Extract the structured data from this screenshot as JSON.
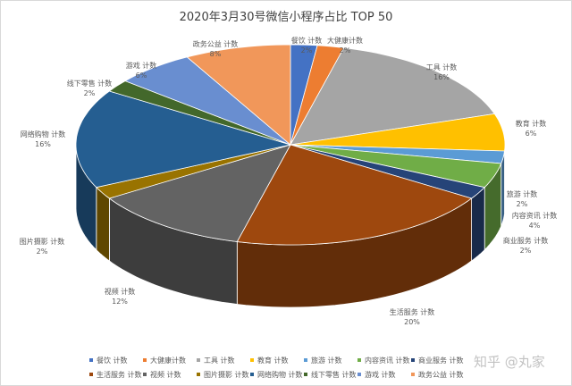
{
  "chart_data": {
    "type": "pie",
    "style": "3d-pie",
    "title": "2020年3月30号微信小程序占比 TOP 50",
    "categories": [
      "餐饮 计数",
      "大健康计数",
      "工具 计数",
      "教育 计数",
      "旅游 计数",
      "内容资讯 计数",
      "商业服务 计数",
      "生活服务 计数",
      "视频 计数",
      "图片摄影 计数",
      "网络购物 计数",
      "线下零售 计数",
      "游戏 计数",
      "政务公益 计数"
    ],
    "values": [
      2,
      2,
      16,
      6,
      2,
      4,
      2,
      20,
      12,
      2,
      16,
      2,
      6,
      8
    ],
    "value_labels": [
      "2%",
      "2%",
      "16%",
      "6%",
      "2%",
      "4%",
      "2%",
      "20%",
      "12%",
      "2%",
      "16%",
      "2%",
      "6%",
      "8%"
    ],
    "colors": [
      "#4472c4",
      "#ed7d31",
      "#a5a5a5",
      "#ffc000",
      "#5b9bd5",
      "#70ad47",
      "#264478",
      "#9e480e",
      "#636363",
      "#997300",
      "#255e91",
      "#43682b",
      "#698ed0",
      "#f1975a"
    ],
    "legend_position": "bottom",
    "start_angle_deg": 0,
    "direction": "clockwise"
  },
  "labels": [
    {
      "name": "餐饮 计数",
      "pct": "2%"
    },
    {
      "name": "大健康计数",
      "pct": "2%"
    },
    {
      "name": "工具 计数",
      "pct": "16%"
    },
    {
      "name": "教育 计数",
      "pct": "6%"
    },
    {
      "name": "旅游 计数",
      "pct": "2%"
    },
    {
      "name": "内容资讯 计数",
      "pct": "4%"
    },
    {
      "name": "商业服务 计数",
      "pct": "2%"
    },
    {
      "name": "生活服务 计数",
      "pct": "20%"
    },
    {
      "name": "视频 计数",
      "pct": "12%"
    },
    {
      "name": "图片摄影 计数",
      "pct": "2%"
    },
    {
      "name": "网络购物 计数",
      "pct": "16%"
    },
    {
      "name": "线下零售 计数",
      "pct": "2%"
    },
    {
      "name": "游戏 计数",
      "pct": "6%"
    },
    {
      "name": "政务公益 计数",
      "pct": "8%"
    }
  ],
  "legend": {
    "row1": [
      "餐饮 计数",
      "大健康计数",
      "工具 计数",
      "教育 计数",
      "旅游 计数",
      "内容资讯 计数",
      "商业服务 计数"
    ],
    "row2": [
      "生活服务 计数",
      "视频 计数",
      "图片摄影 计数",
      "网络购物 计数",
      "线下零售 计数",
      "游戏 计数",
      "政务公益 计数"
    ]
  },
  "watermark": "知乎 @丸家"
}
